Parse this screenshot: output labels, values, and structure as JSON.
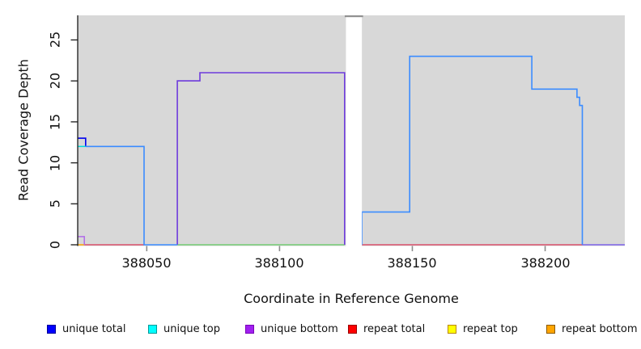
{
  "chart_data": {
    "type": "line",
    "title": "",
    "xlabel": "Coordinate in Reference Genome",
    "ylabel": "Read Coverage Depth",
    "xlim": [
      388024,
      388230
    ],
    "ylim": [
      0,
      28
    ],
    "xticks": [
      388050,
      388100,
      388150,
      388200
    ],
    "yticks": [
      0,
      5,
      10,
      15,
      20,
      25
    ],
    "grid": false,
    "plot_background": "#d8d8d8",
    "gap_region": {
      "x0": 388125,
      "x1": 388131,
      "fill": "#ffffff",
      "cap_color": "#909090"
    },
    "series": [
      {
        "name": "repeat-bottom",
        "legend": "repeat bottom",
        "color": "#ffa500",
        "width": 1.5,
        "points": [
          [
            388024,
            0
          ],
          [
            388026.5,
            0
          ]
        ]
      },
      {
        "name": "repeat-total-left",
        "legend": "repeat total",
        "color": "#d9506a",
        "width": 1.5,
        "points": [
          [
            388026.5,
            0
          ],
          [
            388049,
            0
          ]
        ]
      },
      {
        "name": "repeat-total-right",
        "legend": "repeat total",
        "color": "#d9506a",
        "width": 1.5,
        "points": [
          [
            388131,
            0
          ],
          [
            388214,
            0
          ]
        ]
      },
      {
        "name": "unique-top-baseline",
        "legend": "unique top",
        "color": "#74cb74",
        "width": 1.5,
        "points": [
          [
            388061.5,
            0
          ],
          [
            388124.5,
            0
          ]
        ]
      },
      {
        "name": "unique-bottom-start",
        "legend": "unique bottom",
        "color": "#b06ae8",
        "width": 1.5,
        "points": [
          [
            388024,
            1
          ],
          [
            388026.5,
            1
          ],
          [
            388026.5,
            0
          ]
        ]
      },
      {
        "name": "unique-bottom-main",
        "legend": "unique bottom",
        "color": "#6e3bdc",
        "width": 1.6,
        "points": [
          [
            388061.5,
            0
          ],
          [
            388061.5,
            20
          ],
          [
            388070,
            20
          ],
          [
            388070,
            21
          ],
          [
            388124.5,
            21
          ],
          [
            388124.5,
            0
          ]
        ]
      },
      {
        "name": "unique-total-start",
        "legend": "unique total",
        "color": "#0000ee",
        "width": 1.6,
        "points": [
          [
            388024,
            13
          ],
          [
            388027,
            13
          ],
          [
            388027,
            12
          ]
        ]
      },
      {
        "name": "unique-top-start",
        "legend": "unique top",
        "color": "#00dddd",
        "width": 1.5,
        "points": [
          [
            388024,
            12
          ],
          [
            388027,
            12
          ]
        ]
      },
      {
        "name": "unique-total-main-left",
        "legend": "unique total",
        "color": "#3b8cff",
        "width": 1.6,
        "points": [
          [
            388027,
            12
          ],
          [
            388049,
            12
          ],
          [
            388049,
            0
          ],
          [
            388061.5,
            0
          ]
        ]
      },
      {
        "name": "unique-total-main-right",
        "legend": "unique total",
        "color": "#3b8cff",
        "width": 1.6,
        "points": [
          [
            388131,
            0
          ],
          [
            388131,
            4
          ],
          [
            388149,
            4
          ],
          [
            388149,
            23
          ],
          [
            388195,
            23
          ],
          [
            388195,
            19
          ],
          [
            388212,
            19
          ],
          [
            388212,
            18
          ],
          [
            388213,
            18
          ],
          [
            388213,
            17
          ],
          [
            388214,
            17
          ],
          [
            388214,
            0
          ]
        ]
      },
      {
        "name": "unique-bottom-right",
        "legend": "unique bottom",
        "color": "#7c63e8",
        "width": 1.6,
        "points": [
          [
            388214,
            0
          ],
          [
            388230,
            0
          ]
        ]
      }
    ]
  },
  "legend": {
    "items": [
      {
        "label": "unique total",
        "color": "#0000ff",
        "border": "#000099"
      },
      {
        "label": "unique top",
        "color": "#00ffff",
        "border": "#009999"
      },
      {
        "label": "unique bottom",
        "color": "#a020f0",
        "border": "#7a00b8"
      },
      {
        "label": "repeat total",
        "color": "#ff0000",
        "border": "#990000"
      },
      {
        "label": "repeat top",
        "color": "#ffff00",
        "border": "#b8860b"
      },
      {
        "label": "repeat bottom",
        "color": "#ffa500",
        "border": "#8b5a00"
      }
    ]
  }
}
